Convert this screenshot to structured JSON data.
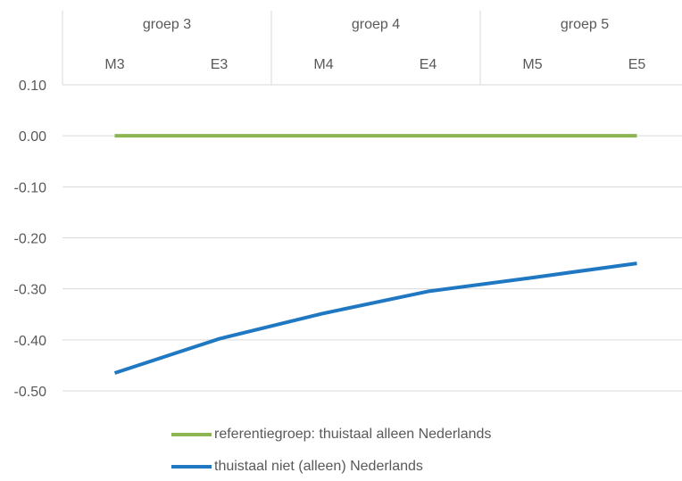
{
  "chart_data": {
    "type": "line",
    "categories": [
      "M3",
      "E3",
      "M4",
      "E4",
      "M5",
      "E5"
    ],
    "groups": [
      {
        "label": "groep 3",
        "span": [
          0,
          1
        ]
      },
      {
        "label": "groep 4",
        "span": [
          2,
          3
        ]
      },
      {
        "label": "groep 5",
        "span": [
          4,
          5
        ]
      }
    ],
    "yticks": [
      "0.10",
      "0.00",
      "-0.10",
      "-0.20",
      "-0.30",
      "-0.40",
      "-0.50"
    ],
    "ylim": [
      -0.5,
      0.1
    ],
    "grid": true,
    "legend_position": "bottom",
    "series": [
      {
        "name": "referentiegroep: thuistaal alleen Nederlands",
        "color": "#8DB652",
        "values": [
          0.0,
          0.0,
          0.0,
          0.0,
          0.0,
          0.0
        ]
      },
      {
        "name": "thuistaal niet (alleen) Nederlands",
        "color": "#1F78C1",
        "values": [
          -0.465,
          -0.398,
          -0.348,
          -0.305,
          -0.278,
          -0.25
        ]
      }
    ]
  }
}
